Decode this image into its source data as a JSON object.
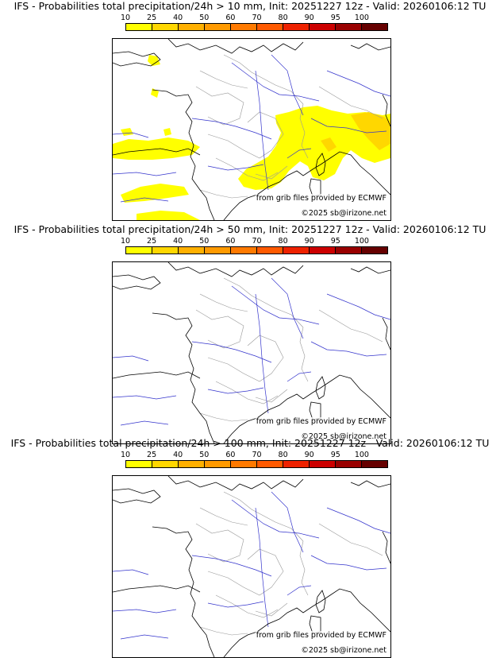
{
  "colorbar": {
    "ticks": [
      "10",
      "25",
      "40",
      "50",
      "60",
      "70",
      "80",
      "90",
      "95",
      "100"
    ],
    "colors": [
      "#ffff00",
      "#ffd700",
      "#ffb000",
      "#ff9a00",
      "#ff7a00",
      "#ff5a00",
      "#ee2200",
      "#cc0000",
      "#990000",
      "#660000"
    ]
  },
  "map_colors": {
    "coast": "#000000",
    "rivers": "#3333cc",
    "borders": "#999999",
    "precip_10": "#ffff00",
    "precip_25": "#ffd700"
  },
  "panels": [
    {
      "title": "IFS - Probabilities total precipitation/24h > 10 mm, Init: 20251227 12z - Valid: 20260106:12 TU",
      "threshold_mm": 10,
      "has_precip": true,
      "credit_source": "from grib files provided by ECMWF",
      "credit_copyright": "©2025 sb@irizone.net"
    },
    {
      "title": "IFS - Probabilities total precipitation/24h > 50 mm, Init: 20251227 12z - Valid: 20260106:12 TU",
      "threshold_mm": 50,
      "has_precip": false,
      "credit_source": "from grib files provided by ECMWF",
      "credit_copyright": "©2025 sb@irizone.net"
    },
    {
      "title": "IFS - Probabilities total precipitation/24h > 100 mm, Init: 20251227 12z - Valid: 20260106:12 TU",
      "threshold_mm": 100,
      "has_precip": false,
      "credit_source": "from grib files provided by ECMWF",
      "credit_copyright": "©2025 sb@irizone.net"
    }
  ]
}
